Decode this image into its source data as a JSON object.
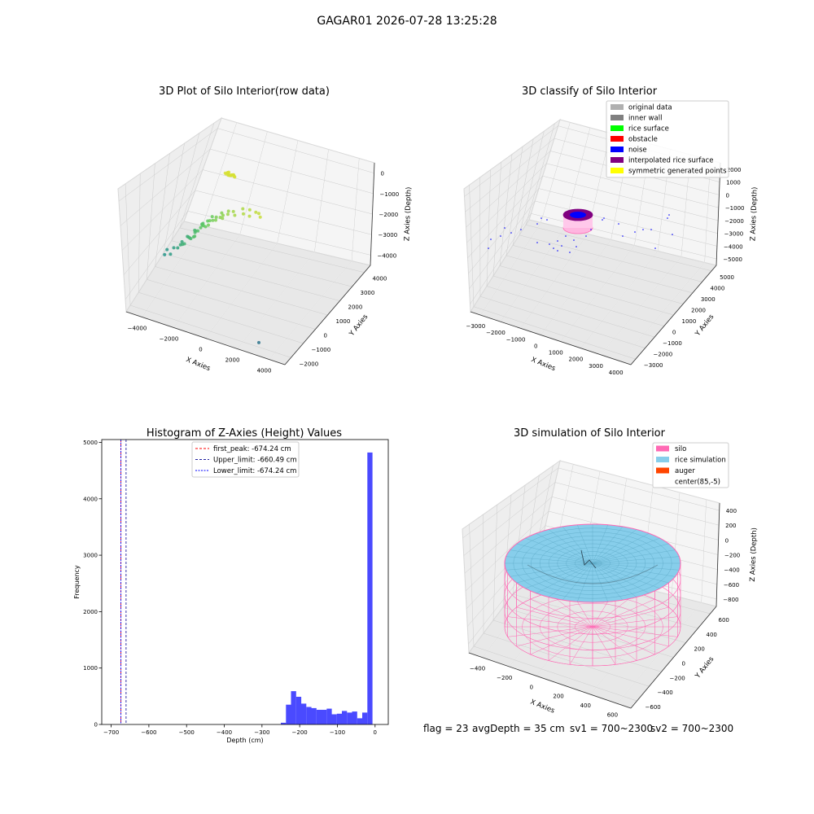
{
  "suptitle": "GAGAR01 2026-07-28 13:25:28",
  "status": {
    "flag": "flag = 23",
    "avg_depth": "avgDepth = 35 cm",
    "sv1": "sv1 = 700~2300",
    "sv2": "sv2 = 700~2300"
  },
  "colors": {
    "hist_bar": "#4a4aff",
    "first_peak": "#ff0000",
    "upper_limit": "#1f1f9f",
    "lower_limit": "#0000ff",
    "original": "#b0b0b0",
    "inner_wall": "#808080",
    "rice_surface": "#00ff00",
    "obstacle": "#ff0000",
    "noise": "#0000ff",
    "interpolated": "#800080",
    "symmetric": "#ffff00",
    "silo": "#ff69b4",
    "rice_sim": "#87ceeb",
    "auger": "#ff4500",
    "center": "#ffffff"
  },
  "chart_data": [
    {
      "type": "scatter",
      "projection": "3d",
      "title": "3D Plot of Silo Interior(row data)",
      "xlabel": "X Axies",
      "ylabel": "Y Axies",
      "zlabel": "Z Axies (Depth)",
      "xticks": [
        "−4000",
        "−2000",
        "0",
        "2000",
        "4000"
      ],
      "yticks": [
        "−2000",
        "−1000",
        "0",
        "1000",
        "2000",
        "3000",
        "4000"
      ],
      "zticks": [
        "0",
        "−1000",
        "−2000",
        "−3000",
        "−4000"
      ],
      "xlim": [
        -4000,
        4000
      ],
      "ylim": [
        -2500,
        4500
      ],
      "zlim": [
        -4300,
        0
      ],
      "color_by": "depth (viridis)",
      "series": [
        {
          "x": [
            -3000,
            -2950,
            -2600,
            -2550,
            -2300,
            -2200,
            -2100,
            -1950,
            -1900,
            -1800,
            -1750,
            -1650,
            -1600,
            -1500,
            -1450,
            -1400,
            -1300,
            -1250,
            -1200,
            -1150,
            -1100,
            -1050,
            -1000,
            -900,
            -800,
            -700,
            -650,
            -600,
            -500,
            -400,
            -300,
            -200,
            -100,
            0,
            100,
            200,
            300,
            400,
            600,
            800,
            1000,
            1200,
            1400,
            1600,
            1800,
            2000,
            2200,
            -300,
            -200,
            -100,
            0,
            100,
            200,
            -250,
            -150,
            -50,
            50,
            150,
            -200,
            -100,
            0,
            100,
            2500
          ],
          "y": [
            0,
            200,
            -200,
            100,
            0,
            300,
            -100,
            400,
            -300,
            200,
            -400,
            0,
            500,
            -200,
            300,
            100,
            -300,
            600,
            0,
            -500,
            400,
            200,
            -100,
            0,
            300,
            -200,
            500,
            100,
            -300,
            0,
            200,
            -100,
            400,
            0,
            100,
            -200,
            300,
            0,
            200,
            -100,
            400,
            0,
            300,
            -200,
            100,
            0,
            -300,
            1500,
            1600,
            1400,
            1500,
            1550,
            1450,
            1520,
            1580,
            1480,
            1530,
            1500,
            1560,
            1490,
            1510,
            1540,
            -2000
          ],
          "z": [
            -3200,
            -3100,
            -3000,
            -2900,
            -2800,
            -2700,
            -2600,
            -2500,
            -2450,
            -2400,
            -2350,
            -2300,
            -2250,
            -2200,
            -2150,
            -2100,
            -2050,
            -2000,
            -1950,
            -1900,
            -1850,
            -1800,
            -1750,
            -1700,
            -1650,
            -1600,
            -1550,
            -1500,
            -1450,
            -1400,
            -1350,
            -1300,
            -1250,
            -1200,
            -1150,
            -1100,
            -1050,
            -1000,
            -950,
            -900,
            -850,
            -800,
            -750,
            -700,
            -650,
            -600,
            -550,
            -400,
            -420,
            -380,
            -410,
            -390,
            -400,
            -430,
            -370,
            -415,
            -395,
            -405,
            -385,
            -425,
            -400,
            -410,
            -4100
          ]
        }
      ]
    },
    {
      "type": "scatter",
      "projection": "3d",
      "title": "3D classify of Silo Interior",
      "xlabel": "X Axies",
      "ylabel": "Y Axies",
      "zlabel": "Z Axies (Depth)",
      "xticks": [
        "−3000",
        "−2000",
        "−1000",
        "0",
        "1000",
        "2000",
        "3000",
        "4000"
      ],
      "yticks": [
        "−3000",
        "−2000",
        "−1000",
        "0",
        "1000",
        "2000",
        "3000",
        "4000",
        "5000"
      ],
      "zticks": [
        "2000",
        "1000",
        "0",
        "−1000",
        "−2000",
        "−3000",
        "−4000",
        "−5000"
      ],
      "xlim": [
        -3500,
        4000
      ],
      "ylim": [
        -3500,
        5000
      ],
      "zlim": [
        -5500,
        2000
      ],
      "legend": {
        "loc": "upper right",
        "entries": [
          {
            "label": "original data",
            "color_key": "original"
          },
          {
            "label": "inner wall",
            "color_key": "inner_wall"
          },
          {
            "label": "rice surface",
            "color_key": "rice_surface"
          },
          {
            "label": "obstacle",
            "color_key": "obstacle"
          },
          {
            "label": "noise",
            "color_key": "noise"
          },
          {
            "label": "interpolated rice surface",
            "color_key": "interpolated"
          },
          {
            "label": "symmetric generated points",
            "color_key": "symmetric"
          }
        ]
      }
    },
    {
      "type": "bar",
      "title": "Histogram of Z-Axies (Height) Values",
      "xlabel": "Depth (cm)",
      "ylabel": "Frequency",
      "xlim": [
        -725,
        35
      ],
      "ylim": [
        0,
        5050
      ],
      "xticks": [
        -700,
        -600,
        -500,
        -400,
        -300,
        -200,
        -100,
        0
      ],
      "xtick_labels": [
        "−700",
        "−600",
        "−500",
        "−400",
        "−300",
        "−200",
        "−100",
        "0"
      ],
      "yticks": [
        0,
        1000,
        2000,
        3000,
        4000,
        5000
      ],
      "bin_width": 13.5,
      "bins": [
        {
          "x0": -250,
          "x1": -236.5,
          "count": 30
        },
        {
          "x0": -236.5,
          "x1": -223,
          "count": 350
        },
        {
          "x0": -223,
          "x1": -209.5,
          "count": 590
        },
        {
          "x0": -209.5,
          "x1": -196,
          "count": 490
        },
        {
          "x0": -196,
          "x1": -182.5,
          "count": 370
        },
        {
          "x0": -182.5,
          "x1": -169,
          "count": 310
        },
        {
          "x0": -169,
          "x1": -155.5,
          "count": 290
        },
        {
          "x0": -155.5,
          "x1": -142,
          "count": 260
        },
        {
          "x0": -142,
          "x1": -128.5,
          "count": 260
        },
        {
          "x0": -128.5,
          "x1": -115,
          "count": 280
        },
        {
          "x0": -115,
          "x1": -101.5,
          "count": 180
        },
        {
          "x0": -101.5,
          "x1": -88,
          "count": 190
        },
        {
          "x0": -88,
          "x1": -74.5,
          "count": 240
        },
        {
          "x0": -74.5,
          "x1": -61,
          "count": 210
        },
        {
          "x0": -61,
          "x1": -47.5,
          "count": 230
        },
        {
          "x0": -47.5,
          "x1": -34,
          "count": 110
        },
        {
          "x0": -34,
          "x1": -20.5,
          "count": 210
        },
        {
          "x0": -20.5,
          "x1": -7,
          "count": 4820
        }
      ],
      "vlines": [
        {
          "label": "first_peak: -674.24 cm",
          "x": -674.24,
          "color_key": "first_peak"
        },
        {
          "label": "Upper_limit: -660.49 cm",
          "x": -660.49,
          "color_key": "upper_limit"
        },
        {
          "label": "Lower_limit: -674.24 cm",
          "x": -674.24,
          "color_key": "lower_limit"
        }
      ],
      "legend": {
        "loc": "upper center"
      }
    },
    {
      "type": "surface",
      "projection": "3d",
      "title": "3D simulation of Silo Interior",
      "xlabel": "X Axies",
      "ylabel": "Y Axies",
      "zlabel": "Z Axies (Depth)",
      "xticks": [
        "−400",
        "−200",
        "0",
        "200",
        "400",
        "600"
      ],
      "yticks": [
        "−600",
        "−400",
        "−200",
        "0",
        "200",
        "400",
        "600"
      ],
      "zticks": [
        "400",
        "200",
        "0",
        "−200",
        "−400",
        "−600",
        "−800"
      ],
      "xlim": [
        -550,
        700
      ],
      "ylim": [
        -650,
        650
      ],
      "zlim": [
        -900,
        450
      ],
      "silo_radius": 500,
      "silo_center": [
        85,
        -5
      ],
      "silo_bottom_z": -800,
      "rice_level_z": 0,
      "legend": {
        "loc": "upper right",
        "entries": [
          {
            "label": "silo",
            "color_key": "silo"
          },
          {
            "label": "rice simulation",
            "color_key": "rice_sim"
          },
          {
            "label": "auger",
            "color_key": "auger"
          },
          {
            "label": "center(85,-5)",
            "color_key": "center"
          }
        ]
      }
    }
  ]
}
